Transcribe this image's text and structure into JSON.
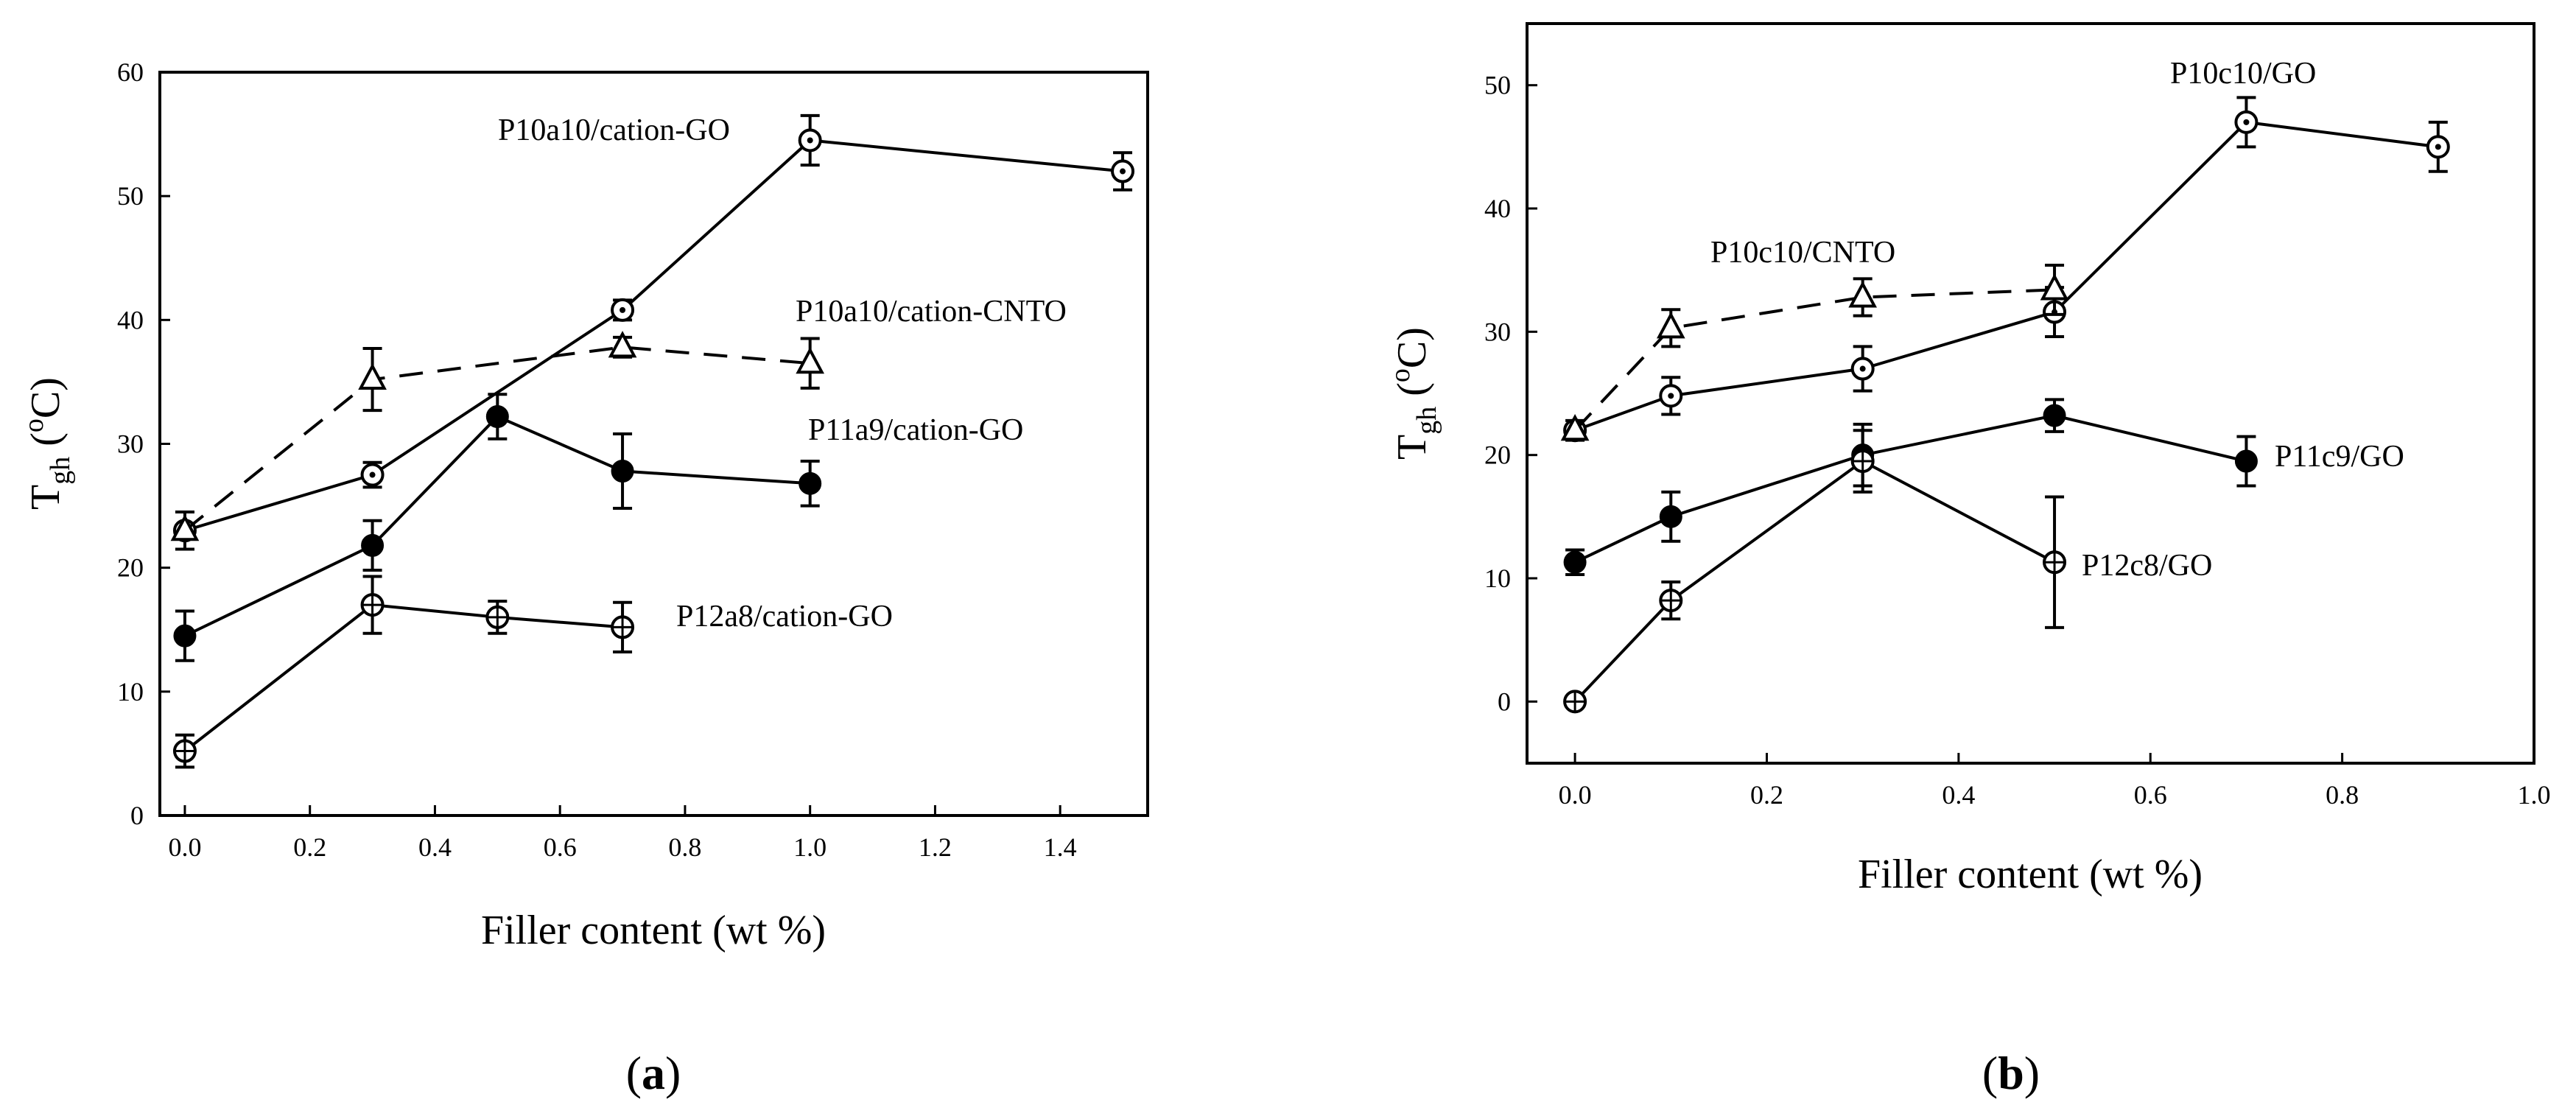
{
  "chart_data": [
    {
      "type": "line",
      "panel_label": "(a)",
      "panel_letter": "a",
      "xlabel": "Filler content (wt %)",
      "ylabel_main": "T",
      "ylabel_sub": "gh",
      "ylabel_unit_open": " (",
      "ylabel_unit_sup": "o",
      "ylabel_unit_close": "C)",
      "xlim": [
        -0.04,
        1.54
      ],
      "ylim": [
        0,
        60
      ],
      "xticks": [
        0.0,
        0.2,
        0.4,
        0.6,
        0.8,
        1.0,
        1.2,
        1.4
      ],
      "xtick_labels": [
        "0.0",
        "0.2",
        "0.4",
        "0.6",
        "0.8",
        "1.0",
        "1.2",
        "1.4"
      ],
      "yticks": [
        0,
        10,
        20,
        30,
        40,
        50,
        60
      ],
      "ytick_labels": [
        "0",
        "10",
        "20",
        "30",
        "40",
        "50",
        "60"
      ],
      "series": [
        {
          "name": "P10a10/cation-GO",
          "marker": "dot-circle",
          "dashed": false,
          "x": [
            0.0,
            0.3,
            0.7,
            1.0,
            1.5
          ],
          "y": [
            23,
            27.5,
            40.8,
            54.5,
            52
          ],
          "err": [
            1.5,
            1,
            0.8,
            2,
            1.5
          ]
        },
        {
          "name": "P10a10/cation-CNTO",
          "marker": "triangle",
          "dashed": true,
          "x": [
            0.0,
            0.3,
            0.7,
            1.0
          ],
          "y": [
            23,
            35.2,
            37.8,
            36.5
          ],
          "err": [
            0,
            2.5,
            0.8,
            2
          ]
        },
        {
          "name": "P11a9/cation-GO",
          "marker": "filled-circle",
          "dashed": false,
          "x": [
            0.0,
            0.3,
            0.5,
            0.7,
            1.0
          ],
          "y": [
            14.5,
            21.8,
            32.2,
            27.8,
            26.8
          ],
          "err": [
            2,
            2,
            1.8,
            3,
            1.8
          ]
        },
        {
          "name": "P12a8/cation-GO",
          "marker": "cross-circle",
          "dashed": false,
          "x": [
            0.0,
            0.3,
            0.5,
            0.7
          ],
          "y": [
            5.2,
            17,
            16,
            15.2
          ],
          "err": [
            1.3,
            2.3,
            1.3,
            2
          ]
        }
      ]
    },
    {
      "type": "line",
      "panel_label": "(b)",
      "panel_letter": "b",
      "xlabel": "Filler content (wt %)",
      "ylabel_main": "T",
      "ylabel_sub": "gh",
      "ylabel_unit_open": " (",
      "ylabel_unit_sup": "o",
      "ylabel_unit_close": "C)",
      "xlim": [
        -0.05,
        1.0
      ],
      "ylim": [
        -5,
        55
      ],
      "xticks": [
        0.0,
        0.2,
        0.4,
        0.6,
        0.8,
        1.0
      ],
      "xtick_labels": [
        "0.0",
        "0.2",
        "0.4",
        "0.6",
        "0.8",
        "1.0"
      ],
      "yticks": [
        0,
        10,
        20,
        30,
        40,
        50
      ],
      "ytick_labels": [
        "0",
        "10",
        "20",
        "30",
        "40",
        "50"
      ],
      "series": [
        {
          "name": "P10c10/GO",
          "marker": "dot-circle",
          "dashed": false,
          "x": [
            0.0,
            0.1,
            0.3,
            0.5,
            0.7,
            0.9
          ],
          "y": [
            22,
            24.8,
            27,
            31.6,
            47,
            45
          ],
          "err": [
            0.8,
            1.5,
            1.8,
            2,
            2,
            2
          ]
        },
        {
          "name": "P10c10/CNTO",
          "marker": "triangle",
          "dashed": true,
          "x": [
            0.0,
            0.1,
            0.3,
            0.5
          ],
          "y": [
            22,
            30.3,
            32.8,
            33.4
          ],
          "err": [
            0,
            1.5,
            1.5,
            2
          ]
        },
        {
          "name": "P11c9/GO",
          "marker": "filled-circle",
          "dashed": false,
          "x": [
            0.0,
            0.1,
            0.3,
            0.5,
            0.7
          ],
          "y": [
            11.3,
            15,
            20,
            23.2,
            19.5
          ],
          "err": [
            1,
            2,
            2.5,
            1.3,
            2
          ]
        },
        {
          "name": "P12c8/GO",
          "marker": "cross-circle",
          "dashed": false,
          "x": [
            0.0,
            0.1,
            0.3,
            0.5
          ],
          "y": [
            0,
            8.2,
            19.5,
            11.3
          ],
          "err": [
            0,
            1.5,
            2.5,
            5.3
          ]
        }
      ]
    }
  ]
}
